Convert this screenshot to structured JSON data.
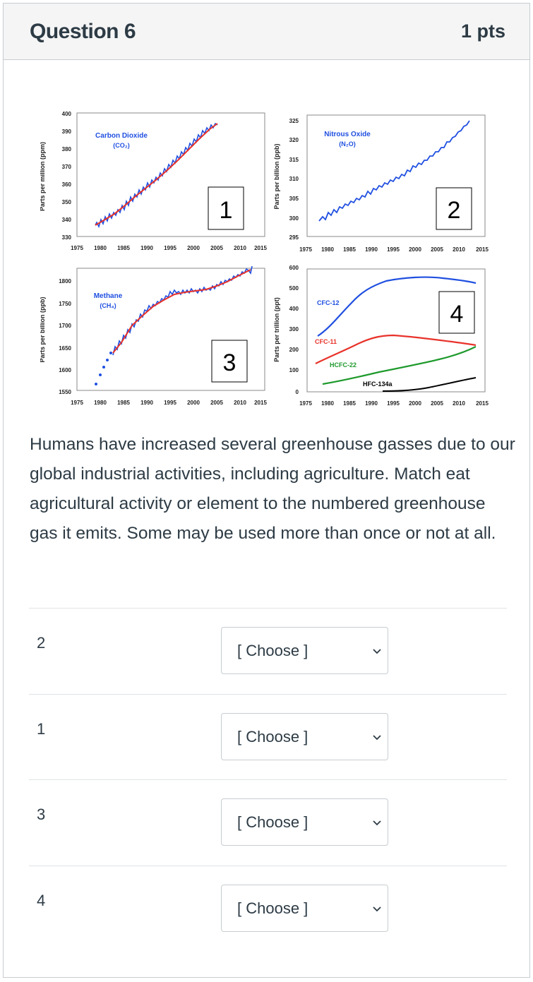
{
  "question": {
    "title": "Question 6",
    "points": "1 pts"
  },
  "figure": {
    "panels": [
      {
        "number": "1",
        "name": "Carbon Dioxide",
        "formula": "(CO₂)",
        "ylabel": "Parts per million (ppm)",
        "yticks": [
          "400",
          "390",
          "380",
          "370",
          "360",
          "350",
          "340",
          "330"
        ]
      },
      {
        "number": "2",
        "name": "Nitrous Oxide",
        "formula": "(N₂O)",
        "ylabel": "Parts per billion (ppb)",
        "yticks": [
          "325",
          "320",
          "315",
          "310",
          "305",
          "300",
          "295"
        ]
      },
      {
        "number": "3",
        "name": "Methane",
        "formula": "(CH₄)",
        "ylabel": "Parts per billion (ppb)",
        "yticks": [
          "1800",
          "1750",
          "1700",
          "1650",
          "1600",
          "1550"
        ]
      },
      {
        "number": "4",
        "ylabel": "Parts per trillion (ppt)",
        "yticks": [
          "600",
          "500",
          "400",
          "300",
          "200",
          "100",
          "0"
        ],
        "series_labels": [
          "CFC-12",
          "CFC-11",
          "HCFC-22",
          "HFC-134a"
        ]
      }
    ],
    "xticks": [
      "1975",
      "1980",
      "1985",
      "1990",
      "1995",
      "2000",
      "2005",
      "2010",
      "2015"
    ],
    "colors": {
      "blue": "#1f4fe0",
      "red": "#e8322a",
      "green": "#1e9a2c",
      "black": "#000000"
    }
  },
  "question_text": "Humans have increased several greenhouse gasses due to our global industrial activities, including agriculture. Match eat agricultural activity or element to the numbered greenhouse gas it emits. Some may be used more than once or not at all.",
  "matches": [
    {
      "label": "2",
      "selected": "[ Choose ]"
    },
    {
      "label": "1",
      "selected": "[ Choose ]"
    },
    {
      "label": "3",
      "selected": "[ Choose ]"
    },
    {
      "label": "4",
      "selected": "[ Choose ]"
    }
  ]
}
